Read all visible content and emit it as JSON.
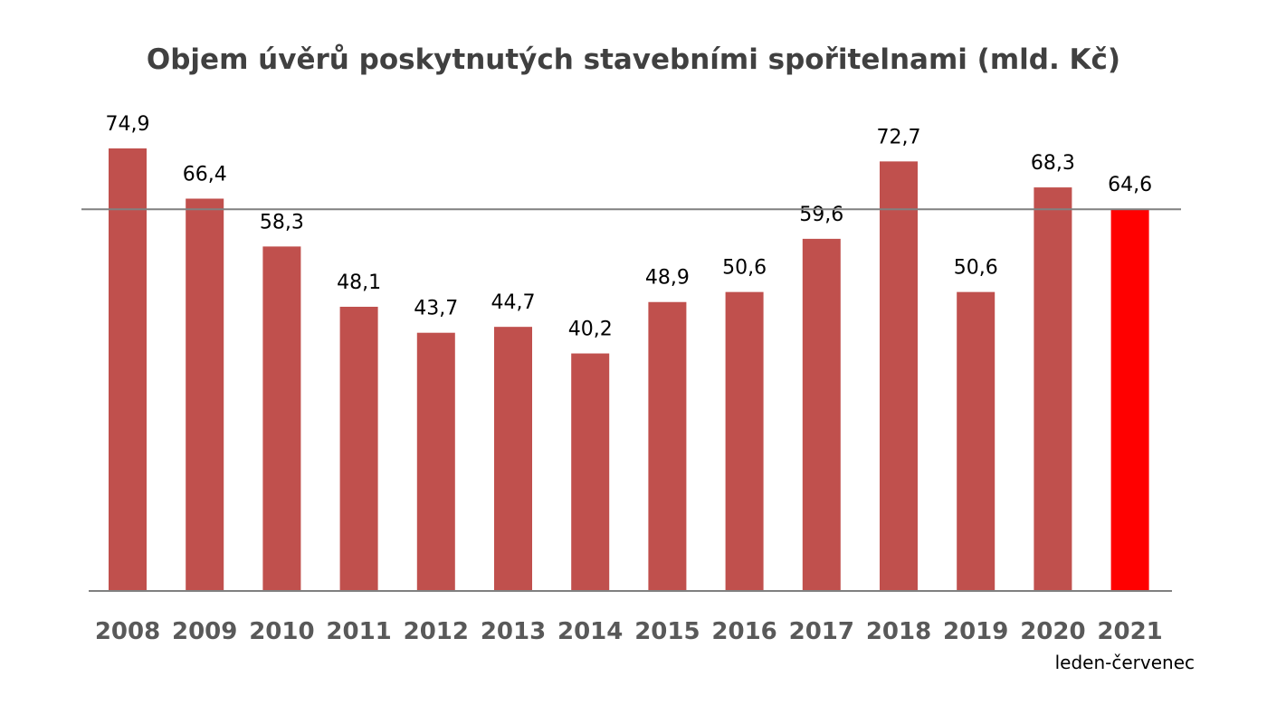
{
  "chart_data": {
    "type": "bar",
    "title": "Objem úvěrů poskytnutých stavebními spořitelnami (mld. Kč)",
    "categories": [
      "2008",
      "2009",
      "2010",
      "2011",
      "2012",
      "2013",
      "2014",
      "2015",
      "2016",
      "2017",
      "2018",
      "2019",
      "2020",
      "2021"
    ],
    "values": [
      74.9,
      66.4,
      58.3,
      48.1,
      43.7,
      44.7,
      40.2,
      48.9,
      50.6,
      59.6,
      72.7,
      50.6,
      68.3,
      64.6
    ],
    "data_labels": [
      "74,9",
      "66,4",
      "58,3",
      "48,1",
      "43,7",
      "44,7",
      "40,2",
      "48,9",
      "50,6",
      "59,6",
      "72,7",
      "50,6",
      "68,3",
      "64,6"
    ],
    "note": "leden-červenec",
    "reference_line": 64.6,
    "ylim": [
      0,
      80
    ],
    "grid": false,
    "legend": "none",
    "colors": {
      "bar": "#c0504d",
      "highlight": "#ff0000",
      "axis": "#808080"
    },
    "highlight_index": 13
  }
}
